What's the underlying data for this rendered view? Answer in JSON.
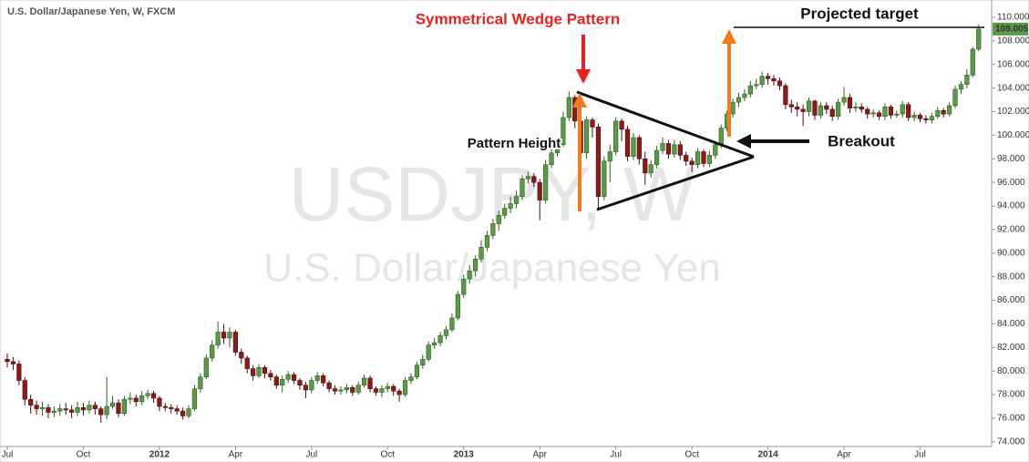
{
  "chart_data": {
    "type": "candlestick",
    "header": "U.S. Dollar/Japanese Yen, W, FXCM",
    "watermark": "USDJPY, W",
    "watermark_subtitle": "U.S. Dollar/Japanese Yen",
    "annotations": {
      "wedge": "Symmetrical Wedge Pattern",
      "height": "Pattern Height",
      "breakout": "Breakout",
      "target": "Projected target"
    },
    "last_price": 109.005,
    "up_color": "#5b9a48",
    "down_color": "#8a1c1c",
    "grid": false,
    "ylim": [
      73.6,
      110.85
    ],
    "yticks": [
      {
        "value": 74,
        "label": "74.000"
      },
      {
        "value": 76,
        "label": "76.000"
      },
      {
        "value": 78,
        "label": "78.000"
      },
      {
        "value": 80,
        "label": "80.000"
      },
      {
        "value": 82,
        "label": "82.000"
      },
      {
        "value": 84,
        "label": "84.000"
      },
      {
        "value": 86,
        "label": "86.000"
      },
      {
        "value": 88,
        "label": "88.000"
      },
      {
        "value": 90,
        "label": "90.000"
      },
      {
        "value": 92,
        "label": "92.000"
      },
      {
        "value": 94,
        "label": "94.000"
      },
      {
        "value": 96,
        "label": "96.000"
      },
      {
        "value": 98,
        "label": "98.000"
      },
      {
        "value": 100,
        "label": "100.000"
      },
      {
        "value": 102,
        "label": "102.000"
      },
      {
        "value": 104,
        "label": "104.000"
      },
      {
        "value": 106,
        "label": "106.000"
      },
      {
        "value": 108,
        "label": "108.000"
      },
      {
        "value": 110,
        "label": "110.000"
      }
    ],
    "categories": [
      "Jul",
      null,
      null,
      null,
      null,
      null,
      null,
      null,
      null,
      null,
      null,
      null,
      null,
      "Oct",
      null,
      null,
      null,
      null,
      null,
      null,
      null,
      null,
      null,
      null,
      null,
      null,
      "2012",
      null,
      null,
      null,
      null,
      null,
      null,
      null,
      null,
      null,
      null,
      null,
      null,
      "Apr",
      null,
      null,
      null,
      null,
      null,
      null,
      null,
      null,
      null,
      null,
      null,
      null,
      "Jul",
      null,
      null,
      null,
      null,
      null,
      null,
      null,
      null,
      null,
      null,
      null,
      null,
      "Oct",
      null,
      null,
      null,
      null,
      null,
      null,
      null,
      null,
      null,
      null,
      null,
      null,
      "2013",
      null,
      null,
      null,
      null,
      null,
      null,
      null,
      null,
      null,
      null,
      null,
      null,
      "Apr",
      null,
      null,
      null,
      null,
      null,
      null,
      null,
      null,
      null,
      null,
      null,
      null,
      "Jul",
      null,
      null,
      null,
      null,
      null,
      null,
      null,
      null,
      null,
      null,
      null,
      null,
      "Oct",
      null,
      null,
      null,
      null,
      null,
      null,
      null,
      null,
      null,
      null,
      null,
      null,
      "2014",
      null,
      null,
      null,
      null,
      null,
      null,
      null,
      null,
      null,
      null,
      null,
      null,
      "Apr",
      null,
      null,
      null,
      null,
      null,
      null,
      null,
      null,
      null,
      null,
      null,
      null,
      "Jul",
      null,
      null,
      null,
      null,
      null,
      null,
      null,
      null,
      null,
      null
    ],
    "open": [
      81.0,
      80.8,
      80.6,
      79.2,
      77.6,
      77.1,
      76.8,
      76.9,
      76.5,
      76.6,
      76.8,
      76.7,
      76.5,
      76.9,
      76.7,
      77.1,
      76.8,
      76.3,
      77.0,
      77.3,
      76.4,
      77.6,
      77.7,
      77.4,
      77.9,
      78.1,
      77.7,
      77.0,
      76.9,
      76.8,
      76.6,
      76.2,
      76.8,
      78.5,
      79.5,
      81.1,
      82.2,
      83.3,
      82.8,
      83.3,
      81.6,
      81.1,
      80.2,
      79.6,
      80.3,
      79.8,
      79.5,
      78.8,
      79.3,
      79.7,
      79.2,
      78.8,
      78.4,
      79.2,
      79.6,
      79.0,
      78.5,
      78.3,
      78.4,
      78.6,
      78.2,
      78.8,
      79.4,
      78.5,
      78.2,
      78.5,
      78.7,
      78.3,
      78.0,
      79.2,
      79.5,
      80.5,
      81.0,
      82.2,
      82.4,
      83.0,
      83.5,
      84.5,
      86.5,
      87.8,
      88.5,
      89.5,
      90.5,
      91.5,
      92.5,
      93.2,
      93.8,
      94.2,
      94.8,
      96.3,
      96.5,
      96.0,
      94.5,
      97.5,
      98.5,
      99.2,
      101.5,
      103.2,
      101.2,
      98.5,
      101.3,
      100.7,
      94.8,
      97.8,
      98.6,
      101.2,
      100.5,
      98.2,
      99.8,
      98.0,
      96.8,
      97.5,
      98.7,
      99.3,
      98.4,
      99.2,
      98.3,
      97.8,
      97.5,
      98.6,
      97.6,
      98.3,
      99.2,
      100.6,
      101.8,
      102.8,
      103.2,
      103.5,
      104.2,
      104.3,
      105.0,
      104.8,
      104.6,
      104.2,
      102.6,
      102.4,
      102.2,
      102.0,
      102.9,
      101.7,
      102.5,
      102.2,
      101.6,
      102.8,
      103.2,
      102.3,
      102.4,
      102.2,
      101.8,
      101.9,
      101.6,
      102.4,
      101.7,
      101.8,
      102.6,
      101.5,
      101.7,
      101.4,
      101.3,
      101.6,
      102.1,
      101.8,
      102.5,
      103.9,
      104.3,
      105.1,
      107.3
    ],
    "high": [
      81.5,
      81.2,
      80.9,
      79.5,
      78.0,
      77.5,
      77.4,
      77.2,
      77.0,
      77.2,
      77.3,
      77.1,
      77.4,
      77.3,
      77.5,
      77.4,
      77.0,
      79.5,
      77.9,
      77.6,
      77.9,
      78.2,
      78.0,
      78.3,
      78.4,
      78.3,
      77.9,
      77.3,
      77.2,
      77.1,
      76.9,
      77.1,
      78.8,
      79.8,
      81.4,
      82.6,
      84.2,
      84.0,
      83.7,
      83.5,
      81.9,
      81.3,
      80.5,
      80.6,
      80.5,
      80.1,
      79.7,
      79.6,
      80.0,
      79.9,
      79.4,
      79.1,
      79.5,
      79.9,
      79.8,
      79.2,
      78.8,
      78.7,
      78.9,
      78.8,
      79.1,
      79.7,
      79.6,
      78.7,
      78.8,
      79.0,
      78.9,
      78.5,
      79.5,
      79.8,
      80.8,
      81.4,
      82.5,
      82.8,
      83.3,
      83.8,
      84.9,
      86.8,
      88.2,
      89.0,
      89.8,
      91.1,
      91.9,
      92.9,
      93.6,
      94.2,
      94.8,
      95.3,
      96.6,
      96.9,
      96.8,
      96.3,
      97.9,
      99.0,
      99.6,
      102.0,
      103.7,
      103.4,
      101.8,
      101.6,
      101.5,
      101.0,
      98.2,
      99.2,
      101.5,
      101.4,
      100.8,
      100.2,
      100.0,
      98.6,
      97.9,
      99.1,
      99.8,
      99.6,
      99.6,
      99.5,
      98.6,
      98.1,
      98.9,
      98.8,
      98.7,
      99.5,
      100.9,
      102.1,
      103.1,
      103.6,
      103.9,
      104.6,
      104.8,
      105.4,
      105.3,
      105.1,
      104.9,
      104.4,
      103.0,
      102.8,
      102.6,
      103.2,
      103.0,
      102.8,
      102.8,
      102.5,
      103.1,
      104.1,
      103.5,
      102.8,
      102.7,
      102.4,
      102.2,
      102.1,
      102.7,
      102.6,
      102.1,
      102.9,
      102.8,
      102.0,
      101.9,
      101.7,
      101.9,
      102.4,
      102.3,
      102.8,
      104.2,
      104.6,
      105.6,
      107.5,
      109.4
    ],
    "low": [
      80.3,
      80.1,
      78.8,
      77.1,
      76.4,
      76.3,
      76.2,
      76.0,
      76.1,
      76.2,
      76.3,
      76.0,
      76.2,
      76.2,
      76.4,
      76.3,
      75.6,
      75.9,
      76.8,
      76.1,
      76.2,
      77.2,
      77.0,
      77.1,
      77.6,
      77.3,
      76.6,
      76.6,
      76.4,
      76.3,
      75.9,
      76.0,
      76.6,
      78.2,
      79.3,
      80.8,
      81.9,
      82.3,
      82.0,
      81.3,
      80.6,
      79.8,
      79.2,
      79.4,
      79.4,
      79.2,
      78.5,
      78.2,
      79.0,
      78.9,
      78.4,
      77.7,
      78.1,
      78.9,
      78.7,
      78.2,
      78.0,
      78.0,
      78.1,
      77.9,
      78.0,
      78.6,
      78.2,
      77.9,
      77.8,
      78.2,
      77.9,
      77.4,
      77.8,
      78.9,
      79.3,
      80.2,
      80.8,
      81.9,
      82.1,
      82.7,
      83.3,
      84.3,
      86.2,
      87.4,
      88.0,
      89.2,
      90.2,
      91.2,
      91.9,
      92.9,
      93.4,
      93.8,
      94.5,
      95.9,
      95.6,
      92.8,
      94.2,
      97.2,
      98.2,
      99.0,
      101.2,
      100.6,
      96.4,
      98.0,
      99.8,
      93.8,
      94.5,
      96.0,
      98.3,
      99.5,
      97.8,
      97.9,
      97.5,
      95.8,
      96.4,
      97.2,
      98.4,
      98.0,
      98.1,
      97.9,
      97.4,
      96.9,
      97.2,
      97.3,
      97.3,
      98.0,
      98.9,
      100.3,
      101.5,
      102.4,
      102.9,
      103.2,
      103.9,
      104.0,
      104.3,
      104.2,
      103.8,
      102.2,
      101.9,
      101.6,
      100.8,
      101.6,
      101.3,
      101.4,
      101.8,
      101.2,
      101.3,
      102.5,
      101.9,
      102.0,
      101.9,
      101.4,
      101.5,
      101.3,
      101.3,
      101.4,
      101.5,
      101.5,
      101.2,
      101.2,
      101.1,
      101.0,
      101.0,
      101.4,
      101.5,
      101.6,
      102.3,
      103.5,
      104.0,
      104.9,
      107.1
    ],
    "close": [
      80.8,
      80.6,
      79.2,
      77.6,
      77.1,
      76.8,
      76.9,
      76.5,
      76.6,
      76.8,
      76.7,
      76.5,
      76.9,
      76.7,
      77.1,
      76.8,
      76.3,
      77.0,
      77.3,
      76.4,
      77.6,
      77.7,
      77.4,
      77.9,
      78.1,
      77.7,
      77.0,
      76.9,
      76.8,
      76.6,
      76.2,
      76.8,
      78.5,
      79.5,
      81.1,
      82.2,
      83.3,
      82.8,
      83.3,
      81.6,
      81.1,
      80.2,
      79.6,
      80.3,
      79.8,
      79.5,
      78.8,
      79.3,
      79.7,
      79.2,
      78.8,
      78.4,
      79.2,
      79.6,
      79.0,
      78.5,
      78.3,
      78.4,
      78.6,
      78.2,
      78.8,
      79.4,
      78.5,
      78.2,
      78.5,
      78.7,
      78.3,
      78.0,
      79.2,
      79.5,
      80.5,
      81.0,
      82.2,
      82.4,
      83.0,
      83.5,
      84.5,
      86.5,
      87.8,
      88.5,
      89.5,
      90.5,
      91.5,
      92.5,
      93.2,
      93.8,
      94.2,
      94.8,
      96.3,
      96.5,
      96.0,
      94.5,
      97.5,
      98.5,
      99.2,
      101.5,
      103.2,
      101.2,
      98.5,
      101.3,
      100.7,
      94.8,
      97.8,
      98.6,
      101.2,
      100.5,
      98.2,
      99.8,
      98.0,
      96.8,
      97.5,
      98.7,
      99.3,
      98.4,
      99.2,
      98.3,
      97.8,
      97.5,
      98.6,
      97.6,
      98.3,
      99.2,
      100.6,
      101.8,
      102.8,
      103.2,
      103.5,
      104.2,
      104.3,
      105.0,
      104.8,
      104.6,
      104.2,
      102.6,
      102.4,
      102.2,
      102.0,
      102.9,
      101.7,
      102.5,
      102.2,
      101.6,
      102.8,
      103.2,
      102.3,
      102.4,
      102.2,
      101.8,
      101.9,
      101.6,
      102.4,
      101.7,
      101.8,
      102.6,
      101.5,
      101.7,
      101.4,
      101.3,
      101.6,
      102.1,
      101.8,
      102.5,
      103.9,
      104.3,
      105.1,
      107.3,
      109.005
    ]
  }
}
